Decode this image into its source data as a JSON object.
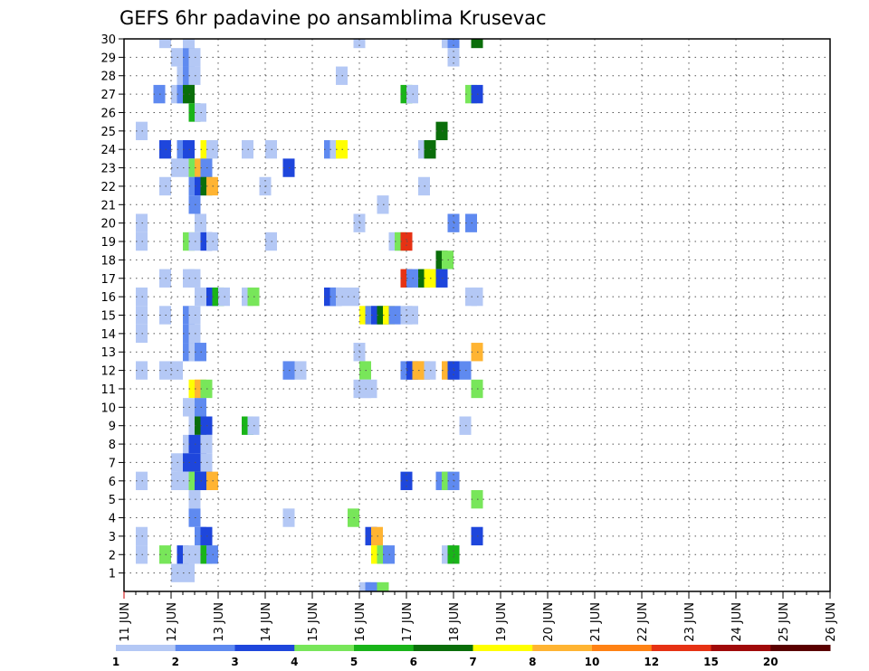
{
  "chart_data": {
    "type": "heatmap",
    "title": "GEFS 6hr padavine po ansamblima Krusevac",
    "xlabel": "",
    "ylabel": "",
    "x_tick_labels": [
      "11 JUN",
      "12 JUN",
      "13 JUN",
      "14 JUN",
      "15 JUN",
      "16 JUN",
      "17 JUN",
      "18 JUN",
      "19 JUN",
      "20 JUN",
      "21 JUN",
      "22 JUN",
      "23 JUN",
      "24 JUN",
      "25 JUN",
      "26 JUN"
    ],
    "y_tick_labels": [
      "1",
      "2",
      "3",
      "4",
      "5",
      "6",
      "7",
      "8",
      "9",
      "10",
      "11",
      "12",
      "13",
      "14",
      "15",
      "16",
      "17",
      "18",
      "19",
      "20",
      "21",
      "22",
      "23",
      "24",
      "25",
      "26",
      "27",
      "28",
      "29",
      "30"
    ],
    "x_unit": "6-hour step (0 = 11 JUN 00Z, 60 = 26 JUN 00Z)",
    "ylim": [
      1,
      30
    ],
    "grid": true,
    "colorbar": {
      "position": "bottom",
      "labels": [
        "1",
        "2",
        "3",
        "4",
        "5",
        "6",
        "7",
        "8",
        "10",
        "12",
        "15",
        "20"
      ],
      "colors": [
        "#b4c8f5",
        "#5f8af0",
        "#1e46dc",
        "#78e65a",
        "#19b419",
        "#0a6e0a",
        "#ffff00",
        "#ffb432",
        "#ff8214",
        "#e63214",
        "#a00a0a",
        "#5a0000"
      ]
    },
    "cells": [
      [
        30,
        [
          [
            3.5,
            1
          ],
          [
            5.5,
            1
          ],
          [
            20,
            1
          ],
          [
            27.5,
            1
          ],
          [
            28,
            2
          ],
          [
            30,
            6
          ]
        ]
      ],
      [
        29,
        [
          [
            4.5,
            1
          ],
          [
            5.5,
            2
          ],
          [
            6,
            1
          ],
          [
            28,
            1
          ]
        ]
      ],
      [
        28,
        [
          [
            5,
            1
          ],
          [
            5.5,
            2
          ],
          [
            6,
            1
          ],
          [
            18.5,
            1
          ]
        ]
      ],
      [
        27,
        [
          [
            3,
            2
          ],
          [
            4.5,
            1
          ],
          [
            5,
            2
          ],
          [
            5.5,
            6
          ],
          [
            24,
            5
          ],
          [
            24.5,
            1
          ],
          [
            29.5,
            4
          ],
          [
            30,
            3
          ]
        ]
      ],
      [
        26,
        [
          [
            6,
            5
          ],
          [
            6.5,
            1
          ]
        ]
      ],
      [
        25,
        [
          [
            1.5,
            1
          ],
          [
            27,
            6
          ]
        ]
      ],
      [
        24,
        [
          [
            3.5,
            3
          ],
          [
            5,
            2
          ],
          [
            5.5,
            3
          ],
          [
            7,
            7
          ],
          [
            7.5,
            1
          ],
          [
            10.5,
            1
          ],
          [
            12.5,
            1
          ],
          [
            17.5,
            2
          ],
          [
            18,
            1
          ],
          [
            18.5,
            7
          ],
          [
            25.5,
            1
          ],
          [
            26,
            6
          ]
        ]
      ],
      [
        23,
        [
          [
            4.5,
            1
          ],
          [
            5.5,
            1
          ],
          [
            6,
            4
          ],
          [
            6.5,
            8
          ],
          [
            7,
            2
          ],
          [
            14,
            3
          ]
        ]
      ],
      [
        22,
        [
          [
            3.5,
            1
          ],
          [
            6,
            2
          ],
          [
            6.5,
            3
          ],
          [
            7,
            6
          ],
          [
            7.5,
            8
          ],
          [
            12,
            1
          ],
          [
            25.5,
            1
          ]
        ]
      ],
      [
        21,
        [
          [
            6,
            2
          ],
          [
            22,
            1
          ]
        ]
      ],
      [
        20,
        [
          [
            1.5,
            1
          ],
          [
            6.5,
            1
          ],
          [
            20,
            1
          ],
          [
            28,
            2
          ],
          [
            29.5,
            2
          ]
        ]
      ],
      [
        19,
        [
          [
            1.5,
            1
          ],
          [
            5.5,
            4
          ],
          [
            6,
            1
          ],
          [
            7,
            3
          ],
          [
            7.5,
            1
          ],
          [
            12.5,
            1
          ],
          [
            23,
            1
          ],
          [
            23.5,
            4
          ],
          [
            24,
            10
          ]
        ]
      ],
      [
        18,
        [
          [
            27,
            6
          ],
          [
            27.5,
            4
          ]
        ]
      ],
      [
        17,
        [
          [
            3.5,
            1
          ],
          [
            5.5,
            1
          ],
          [
            6,
            1
          ],
          [
            24,
            10
          ],
          [
            24.5,
            2
          ],
          [
            25.5,
            6
          ],
          [
            26,
            7
          ],
          [
            27,
            3
          ]
        ]
      ],
      [
        16,
        [
          [
            1.5,
            1
          ],
          [
            6.5,
            1
          ],
          [
            7,
            1
          ],
          [
            7.5,
            3
          ],
          [
            8,
            5
          ],
          [
            8.5,
            1
          ],
          [
            10.5,
            1
          ],
          [
            11,
            4
          ],
          [
            17.5,
            3
          ],
          [
            18,
            2
          ],
          [
            18.5,
            1
          ],
          [
            19.5,
            1
          ],
          [
            29.5,
            1
          ],
          [
            30,
            1
          ]
        ]
      ],
      [
        15,
        [
          [
            1.5,
            1
          ],
          [
            3.5,
            1
          ],
          [
            5.5,
            2
          ],
          [
            6,
            1
          ],
          [
            20.5,
            7
          ],
          [
            21,
            2
          ],
          [
            21.5,
            3
          ],
          [
            22,
            6
          ],
          [
            22.5,
            7
          ],
          [
            23,
            2
          ],
          [
            24,
            1
          ],
          [
            24.5,
            1
          ]
        ]
      ],
      [
        14,
        [
          [
            1.5,
            1
          ],
          [
            5.5,
            2
          ],
          [
            6,
            1
          ]
        ]
      ],
      [
        13,
        [
          [
            5.5,
            2
          ],
          [
            6,
            1
          ],
          [
            6.5,
            2
          ],
          [
            20,
            1
          ],
          [
            30,
            8
          ]
        ]
      ],
      [
        12,
        [
          [
            1.5,
            1
          ],
          [
            3.5,
            1
          ],
          [
            4.5,
            1
          ],
          [
            14,
            2
          ],
          [
            15,
            1
          ],
          [
            20.5,
            4
          ],
          [
            24,
            2
          ],
          [
            24.5,
            3
          ],
          [
            25,
            8
          ],
          [
            25.5,
            8
          ],
          [
            26,
            1
          ],
          [
            27.5,
            8
          ],
          [
            28,
            3
          ],
          [
            29,
            2
          ]
        ]
      ],
      [
        11,
        [
          [
            6,
            7
          ],
          [
            6.5,
            8
          ],
          [
            7,
            4
          ],
          [
            20,
            1
          ],
          [
            20.5,
            1
          ],
          [
            21,
            1
          ],
          [
            30,
            4
          ]
        ]
      ],
      [
        10,
        [
          [
            5.5,
            1
          ],
          [
            6.5,
            2
          ]
        ]
      ],
      [
        9,
        [
          [
            6,
            1
          ],
          [
            6.5,
            6
          ],
          [
            7,
            3
          ],
          [
            10.5,
            5
          ],
          [
            11,
            1
          ],
          [
            29,
            1
          ]
        ]
      ],
      [
        8,
        [
          [
            5.5,
            1
          ],
          [
            6,
            3
          ],
          [
            7,
            1
          ]
        ]
      ],
      [
        7,
        [
          [
            4.5,
            1
          ],
          [
            5.5,
            3
          ],
          [
            6.5,
            3
          ],
          [
            7,
            1
          ]
        ]
      ],
      [
        6,
        [
          [
            1.5,
            1
          ],
          [
            4.5,
            1
          ],
          [
            5,
            1
          ],
          [
            6,
            4
          ],
          [
            6.5,
            3
          ],
          [
            7,
            3
          ],
          [
            7.5,
            8
          ],
          [
            24,
            3
          ],
          [
            27,
            2
          ],
          [
            27.5,
            4
          ],
          [
            28,
            2
          ]
        ]
      ],
      [
        5,
        [
          [
            6,
            1
          ],
          [
            30,
            4
          ]
        ]
      ],
      [
        4,
        [
          [
            6,
            2
          ],
          [
            14,
            1
          ],
          [
            19.5,
            4
          ]
        ]
      ],
      [
        3,
        [
          [
            1.5,
            1
          ],
          [
            6.5,
            2
          ],
          [
            7,
            3
          ],
          [
            21,
            3
          ],
          [
            21.5,
            8
          ],
          [
            30,
            3
          ]
        ]
      ],
      [
        2,
        [
          [
            1.5,
            1
          ],
          [
            3.5,
            4
          ],
          [
            5,
            3
          ],
          [
            5.5,
            1
          ],
          [
            6.5,
            1
          ],
          [
            7,
            5
          ],
          [
            7.5,
            2
          ],
          [
            21.5,
            7
          ],
          [
            22,
            4
          ],
          [
            22.5,
            2
          ],
          [
            27.5,
            1
          ],
          [
            28,
            5
          ]
        ]
      ],
      [
        1,
        [
          [
            4.5,
            1
          ],
          [
            5.5,
            1
          ]
        ]
      ],
      [
        0,
        [
          [
            20.5,
            1
          ],
          [
            21,
            2
          ],
          [
            22,
            4
          ]
        ]
      ]
    ]
  }
}
